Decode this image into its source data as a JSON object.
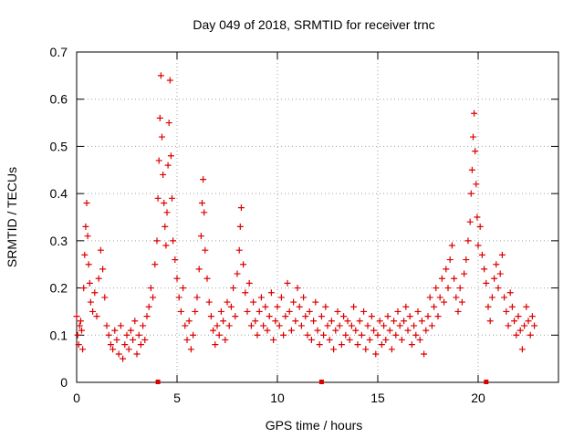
{
  "chart_data": {
    "type": "scatter",
    "title": "Day 049 of 2018, SRMTID for receiver trnc",
    "xlabel": "GPS time / hours",
    "ylabel": "SRMTID / TECUs",
    "xlim": [
      0,
      24
    ],
    "ylim": [
      0,
      0.7
    ],
    "xticks": [
      0,
      5,
      10,
      15,
      20
    ],
    "xtick_labels": [
      "0",
      "5",
      "10",
      "15",
      "20"
    ],
    "yticks": [
      0,
      0.1,
      0.2,
      0.3,
      0.4,
      0.5,
      0.6,
      0.7
    ],
    "ytick_labels": [
      "0",
      "0.1",
      "0.2",
      "0.3",
      "0.4",
      "0.5",
      "0.6",
      "0.7"
    ],
    "grid": true,
    "marker": "+",
    "color": "#dd0000",
    "series": [
      {
        "name": "SRMTID",
        "points": [
          [
            0.0,
            0.14
          ],
          [
            0.05,
            0.1
          ],
          [
            0.1,
            0.08
          ],
          [
            0.15,
            0.12
          ],
          [
            0.2,
            0.13
          ],
          [
            0.25,
            0.11
          ],
          [
            0.3,
            0.07
          ],
          [
            0.35,
            0.2
          ],
          [
            0.4,
            0.27
          ],
          [
            0.45,
            0.33
          ],
          [
            0.5,
            0.38
          ],
          [
            0.55,
            0.31
          ],
          [
            0.6,
            0.25
          ],
          [
            0.65,
            0.21
          ],
          [
            0.7,
            0.17
          ],
          [
            0.8,
            0.15
          ],
          [
            0.9,
            0.19
          ],
          [
            1.0,
            0.14
          ],
          [
            1.1,
            0.22
          ],
          [
            1.2,
            0.28
          ],
          [
            1.3,
            0.24
          ],
          [
            1.4,
            0.18
          ],
          [
            1.5,
            0.12
          ],
          [
            1.6,
            0.1
          ],
          [
            1.7,
            0.08
          ],
          [
            1.8,
            0.07
          ],
          [
            1.9,
            0.11
          ],
          [
            2.0,
            0.09
          ],
          [
            2.1,
            0.06
          ],
          [
            2.2,
            0.12
          ],
          [
            2.3,
            0.05
          ],
          [
            2.4,
            0.08
          ],
          [
            2.5,
            0.1
          ],
          [
            2.6,
            0.07
          ],
          [
            2.7,
            0.11
          ],
          [
            2.8,
            0.09
          ],
          [
            2.9,
            0.13
          ],
          [
            3.0,
            0.06
          ],
          [
            3.1,
            0.1
          ],
          [
            3.2,
            0.08
          ],
          [
            3.3,
            0.12
          ],
          [
            3.4,
            0.09
          ],
          [
            3.5,
            0.14
          ],
          [
            3.6,
            0.16
          ],
          [
            3.7,
            0.2
          ],
          [
            3.8,
            0.18
          ],
          [
            3.9,
            0.25
          ],
          [
            4.0,
            0.3
          ],
          [
            4.05,
            0.39
          ],
          [
            4.1,
            0.47
          ],
          [
            4.15,
            0.56
          ],
          [
            4.2,
            0.65
          ],
          [
            4.25,
            0.52
          ],
          [
            4.3,
            0.44
          ],
          [
            4.35,
            0.38
          ],
          [
            4.4,
            0.33
          ],
          [
            4.45,
            0.29
          ],
          [
            4.5,
            0.36
          ],
          [
            4.55,
            0.46
          ],
          [
            4.6,
            0.55
          ],
          [
            4.65,
            0.64
          ],
          [
            4.7,
            0.48
          ],
          [
            4.75,
            0.39
          ],
          [
            4.8,
            0.3
          ],
          [
            4.9,
            0.26
          ],
          [
            5.0,
            0.22
          ],
          [
            5.1,
            0.18
          ],
          [
            5.2,
            0.15
          ],
          [
            5.3,
            0.2
          ],
          [
            5.4,
            0.12
          ],
          [
            5.5,
            0.09
          ],
          [
            5.6,
            0.13
          ],
          [
            5.7,
            0.07
          ],
          [
            5.8,
            0.1
          ],
          [
            5.9,
            0.15
          ],
          [
            6.0,
            0.18
          ],
          [
            6.1,
            0.24
          ],
          [
            6.2,
            0.31
          ],
          [
            6.25,
            0.38
          ],
          [
            6.3,
            0.43
          ],
          [
            6.35,
            0.36
          ],
          [
            6.4,
            0.28
          ],
          [
            6.5,
            0.22
          ],
          [
            6.6,
            0.17
          ],
          [
            6.7,
            0.14
          ],
          [
            6.8,
            0.11
          ],
          [
            6.9,
            0.08
          ],
          [
            7.0,
            0.12
          ],
          [
            7.1,
            0.1
          ],
          [
            7.2,
            0.15
          ],
          [
            7.3,
            0.13
          ],
          [
            7.4,
            0.09
          ],
          [
            7.5,
            0.17
          ],
          [
            7.6,
            0.12
          ],
          [
            7.7,
            0.16
          ],
          [
            7.8,
            0.2
          ],
          [
            7.9,
            0.14
          ],
          [
            8.0,
            0.23
          ],
          [
            8.1,
            0.28
          ],
          [
            8.15,
            0.33
          ],
          [
            8.2,
            0.37
          ],
          [
            8.3,
            0.25
          ],
          [
            8.4,
            0.19
          ],
          [
            8.5,
            0.15
          ],
          [
            8.6,
            0.21
          ],
          [
            8.7,
            0.12
          ],
          [
            8.8,
            0.17
          ],
          [
            8.9,
            0.13
          ],
          [
            9.0,
            0.1
          ],
          [
            9.1,
            0.15
          ],
          [
            9.2,
            0.18
          ],
          [
            9.3,
            0.12
          ],
          [
            9.4,
            0.16
          ],
          [
            9.5,
            0.11
          ],
          [
            9.6,
            0.14
          ],
          [
            9.7,
            0.19
          ],
          [
            9.8,
            0.09
          ],
          [
            9.9,
            0.13
          ],
          [
            10.0,
            0.16
          ],
          [
            10.1,
            0.12
          ],
          [
            10.2,
            0.18
          ],
          [
            10.3,
            0.1
          ],
          [
            10.4,
            0.14
          ],
          [
            10.5,
            0.21
          ],
          [
            10.6,
            0.15
          ],
          [
            10.7,
            0.11
          ],
          [
            10.8,
            0.17
          ],
          [
            10.9,
            0.13
          ],
          [
            11.0,
            0.2
          ],
          [
            11.1,
            0.16
          ],
          [
            11.2,
            0.12
          ],
          [
            11.3,
            0.18
          ],
          [
            11.4,
            0.14
          ],
          [
            11.5,
            0.1
          ],
          [
            11.6,
            0.15
          ],
          [
            11.7,
            0.09
          ],
          [
            11.8,
            0.13
          ],
          [
            11.9,
            0.17
          ],
          [
            12.0,
            0.11
          ],
          [
            12.1,
            0.08
          ],
          [
            12.2,
            0.14
          ],
          [
            12.3,
            0.1
          ],
          [
            12.4,
            0.16
          ],
          [
            12.5,
            0.12
          ],
          [
            12.6,
            0.09
          ],
          [
            12.7,
            0.13
          ],
          [
            12.8,
            0.07
          ],
          [
            12.9,
            0.11
          ],
          [
            13.0,
            0.15
          ],
          [
            13.1,
            0.12
          ],
          [
            13.2,
            0.08
          ],
          [
            13.3,
            0.14
          ],
          [
            13.4,
            0.1
          ],
          [
            13.5,
            0.13
          ],
          [
            13.6,
            0.09
          ],
          [
            13.7,
            0.12
          ],
          [
            13.8,
            0.16
          ],
          [
            13.9,
            0.11
          ],
          [
            14.0,
            0.08
          ],
          [
            14.1,
            0.13
          ],
          [
            14.2,
            0.1
          ],
          [
            14.3,
            0.15
          ],
          [
            14.4,
            0.07
          ],
          [
            14.5,
            0.12
          ],
          [
            14.6,
            0.09
          ],
          [
            14.7,
            0.14
          ],
          [
            14.8,
            0.11
          ],
          [
            14.9,
            0.06
          ],
          [
            15.0,
            0.1
          ],
          [
            15.1,
            0.13
          ],
          [
            15.2,
            0.08
          ],
          [
            15.3,
            0.12
          ],
          [
            15.4,
            0.09
          ],
          [
            15.5,
            0.14
          ],
          [
            15.6,
            0.11
          ],
          [
            15.7,
            0.07
          ],
          [
            15.8,
            0.13
          ],
          [
            15.9,
            0.1
          ],
          [
            16.0,
            0.15
          ],
          [
            16.1,
            0.12
          ],
          [
            16.2,
            0.09
          ],
          [
            16.3,
            0.13
          ],
          [
            16.4,
            0.16
          ],
          [
            16.5,
            0.11
          ],
          [
            16.6,
            0.14
          ],
          [
            16.7,
            0.08
          ],
          [
            16.8,
            0.12
          ],
          [
            16.9,
            0.1
          ],
          [
            17.0,
            0.15
          ],
          [
            17.1,
            0.09
          ],
          [
            17.2,
            0.13
          ],
          [
            17.3,
            0.06
          ],
          [
            17.4,
            0.11
          ],
          [
            17.5,
            0.14
          ],
          [
            17.6,
            0.18
          ],
          [
            17.7,
            0.12
          ],
          [
            17.8,
            0.16
          ],
          [
            17.9,
            0.2
          ],
          [
            18.0,
            0.14
          ],
          [
            18.1,
            0.18
          ],
          [
            18.2,
            0.22
          ],
          [
            18.3,
            0.17
          ],
          [
            18.4,
            0.24
          ],
          [
            18.5,
            0.2
          ],
          [
            18.6,
            0.26
          ],
          [
            18.7,
            0.29
          ],
          [
            18.8,
            0.22
          ],
          [
            18.9,
            0.18
          ],
          [
            19.0,
            0.15
          ],
          [
            19.1,
            0.2
          ],
          [
            19.2,
            0.17
          ],
          [
            19.3,
            0.23
          ],
          [
            19.4,
            0.26
          ],
          [
            19.5,
            0.3
          ],
          [
            19.6,
            0.34
          ],
          [
            19.65,
            0.4
          ],
          [
            19.7,
            0.45
          ],
          [
            19.75,
            0.52
          ],
          [
            19.8,
            0.57
          ],
          [
            19.85,
            0.49
          ],
          [
            19.9,
            0.42
          ],
          [
            19.95,
            0.35
          ],
          [
            20.0,
            0.29
          ],
          [
            20.1,
            0.33
          ],
          [
            20.2,
            0.27
          ],
          [
            20.3,
            0.24
          ],
          [
            20.4,
            0.21
          ],
          [
            20.5,
            0.16
          ],
          [
            20.6,
            0.13
          ],
          [
            20.7,
            0.18
          ],
          [
            20.8,
            0.22
          ],
          [
            20.9,
            0.25
          ],
          [
            21.0,
            0.2
          ],
          [
            21.1,
            0.23
          ],
          [
            21.2,
            0.27
          ],
          [
            21.3,
            0.18
          ],
          [
            21.4,
            0.15
          ],
          [
            21.5,
            0.12
          ],
          [
            21.6,
            0.19
          ],
          [
            21.7,
            0.16
          ],
          [
            21.8,
            0.13
          ],
          [
            21.9,
            0.1
          ],
          [
            22.0,
            0.14
          ],
          [
            22.1,
            0.11
          ],
          [
            22.2,
            0.07
          ],
          [
            22.3,
            0.12
          ],
          [
            22.4,
            0.16
          ],
          [
            22.5,
            0.13
          ],
          [
            22.6,
            0.1
          ],
          [
            22.7,
            0.14
          ],
          [
            22.8,
            0.12
          ]
        ]
      }
    ],
    "axis_markers_x": [
      4.05,
      12.2,
      20.4
    ]
  }
}
